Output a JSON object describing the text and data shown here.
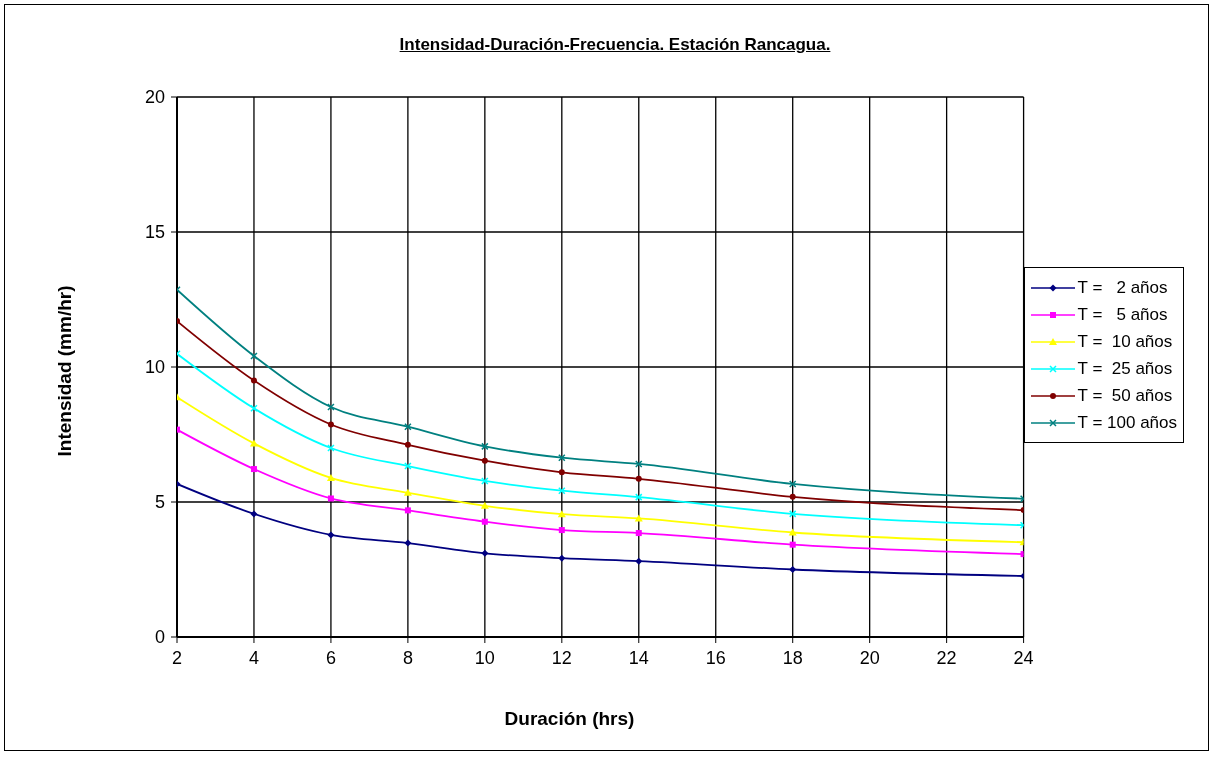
{
  "chart_data": {
    "type": "line",
    "title": "Intensidad-Duración-Frecuencia. Estación Rancagua.",
    "xlabel": "Duración (hrs)",
    "ylabel": "Intensidad (mm/hr)",
    "x": [
      2,
      4,
      6,
      8,
      10,
      12,
      14,
      18,
      24
    ],
    "xlim": [
      2,
      24
    ],
    "xticks": [
      2,
      4,
      6,
      8,
      10,
      12,
      14,
      16,
      18,
      20,
      22,
      24
    ],
    "ylim": [
      0,
      20
    ],
    "yticks": [
      0,
      5,
      10,
      15,
      20
    ],
    "grid": true,
    "legend": "right",
    "line_style": "solid",
    "series": [
      {
        "name": "T =   2 años",
        "color": "#000080",
        "marker": "diamond",
        "values": [
          5.67,
          4.56,
          3.78,
          3.48,
          3.1,
          2.92,
          2.81,
          2.5,
          2.26
        ]
      },
      {
        "name": "T =   5 años",
        "color": "#ff00ff",
        "marker": "square",
        "values": [
          7.68,
          6.22,
          5.13,
          4.69,
          4.27,
          3.96,
          3.85,
          3.42,
          3.07
        ]
      },
      {
        "name": "T =  10 años",
        "color": "#ffff00",
        "marker": "triangle",
        "values": [
          8.88,
          7.17,
          5.89,
          5.34,
          4.86,
          4.55,
          4.39,
          3.87,
          3.51
        ]
      },
      {
        "name": "T =  25 años",
        "color": "#00ffff",
        "marker": "cross",
        "values": [
          10.49,
          8.47,
          7.0,
          6.33,
          5.78,
          5.42,
          5.18,
          4.56,
          4.14
        ]
      },
      {
        "name": "T =  50 años",
        "color": "#800000",
        "marker": "circle",
        "values": [
          11.7,
          9.5,
          7.87,
          7.12,
          6.53,
          6.1,
          5.86,
          5.19,
          4.7
        ]
      },
      {
        "name": "T = 100 años",
        "color": "#008080",
        "marker": "cross",
        "values": [
          12.86,
          10.41,
          8.52,
          7.79,
          7.06,
          6.64,
          6.41,
          5.67,
          5.12
        ]
      }
    ]
  }
}
